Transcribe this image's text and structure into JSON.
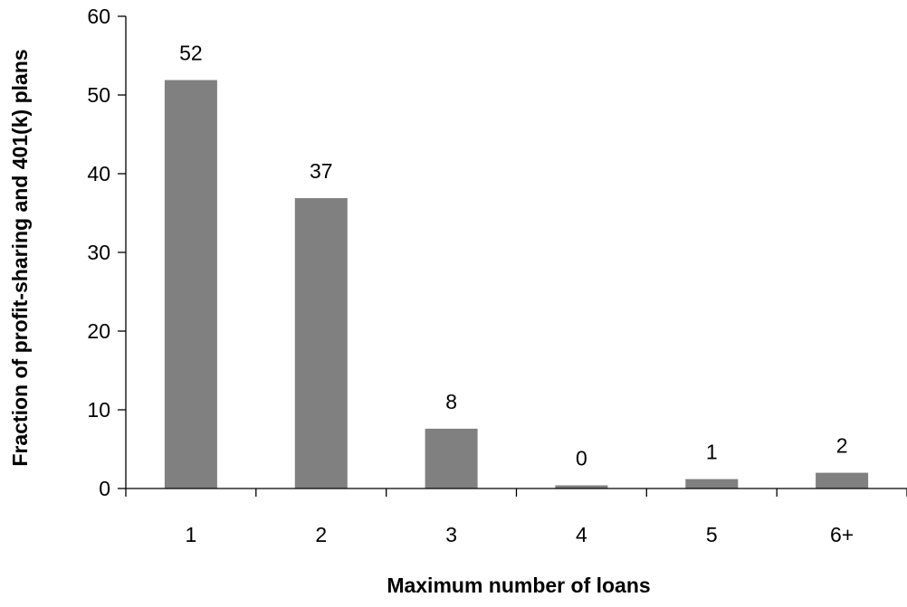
{
  "chart_data": {
    "type": "bar",
    "title": "",
    "xlabel": "Maximum number of loans",
    "ylabel": "Fraction of profit-sharing and  401(k) plans",
    "categories": [
      "1",
      "2",
      "3",
      "4",
      "5",
      "6+"
    ],
    "values": [
      51.9,
      36.9,
      7.6,
      0.4,
      1.2,
      2.0
    ],
    "data_labels": [
      "52",
      "37",
      "8",
      "0",
      "1",
      "2"
    ],
    "ylim": [
      0,
      60
    ],
    "yticks": [
      "0",
      "10",
      "20",
      "30",
      "40",
      "50",
      "60"
    ],
    "grid": false,
    "legend": "none",
    "bar_color": "#808080"
  }
}
